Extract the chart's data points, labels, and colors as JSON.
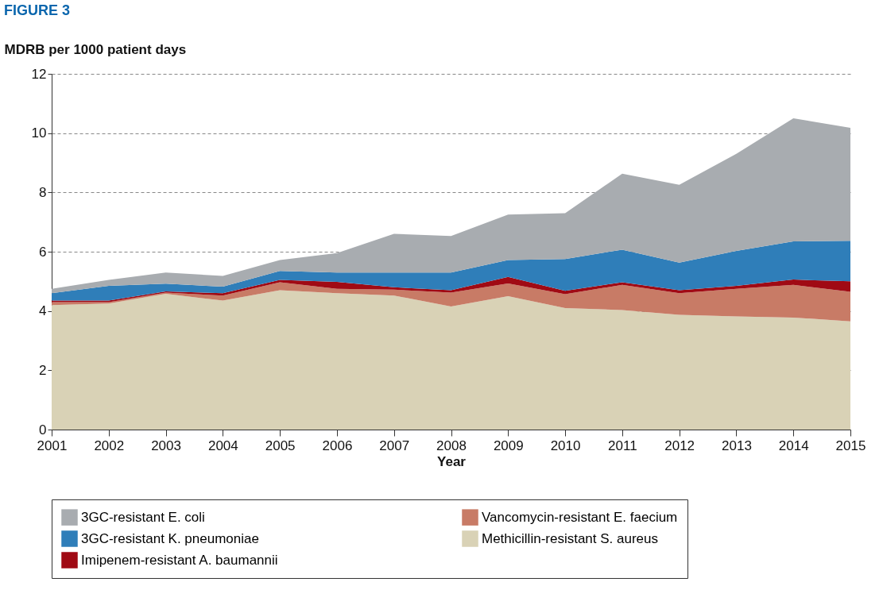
{
  "chart_data": {
    "type": "area",
    "title": "FIGURE 3",
    "ylabel": "MDRB per 1000 patient days",
    "xlabel": "Year",
    "stacked": true,
    "x": [
      2001,
      2002,
      2003,
      2004,
      2005,
      2006,
      2007,
      2008,
      2009,
      2010,
      2011,
      2012,
      2013,
      2014,
      2015
    ],
    "series": [
      {
        "name": "Methicillin-resistant S. aureus",
        "color": "#d9d2b6",
        "values": [
          4.2,
          4.25,
          4.58,
          4.35,
          4.7,
          4.6,
          4.52,
          4.15,
          4.5,
          4.1,
          4.03,
          3.87,
          3.82,
          3.78,
          3.65
        ]
      },
      {
        "name": "Vancomycin-resistant E. faecium",
        "color": "#c87b66",
        "values": [
          0.1,
          0.05,
          0.04,
          0.17,
          0.27,
          0.15,
          0.2,
          0.47,
          0.43,
          0.47,
          0.85,
          0.73,
          0.93,
          1.1,
          1.0
        ]
      },
      {
        "name": "Imipenem-resistant A. baumannii",
        "color": "#a00a14",
        "values": [
          0.05,
          0.05,
          0.04,
          0.08,
          0.08,
          0.23,
          0.08,
          0.08,
          0.22,
          0.11,
          0.09,
          0.1,
          0.1,
          0.18,
          0.35
        ]
      },
      {
        "name": "3GC-resistant K. pneumoniae",
        "color": "#2f7eb9",
        "values": [
          0.25,
          0.5,
          0.26,
          0.22,
          0.3,
          0.32,
          0.5,
          0.6,
          0.57,
          1.07,
          1.1,
          0.93,
          1.18,
          1.29,
          1.37
        ]
      },
      {
        "name": "3GC-resistant E. coli",
        "color": "#a8acb0",
        "values": [
          0.15,
          0.2,
          0.38,
          0.36,
          0.37,
          0.65,
          1.3,
          1.23,
          1.53,
          1.55,
          2.56,
          2.63,
          3.27,
          4.15,
          3.81
        ]
      }
    ],
    "xlim": [
      2001,
      2015
    ],
    "xticks": [
      2001,
      2002,
      2003,
      2004,
      2005,
      2006,
      2007,
      2008,
      2009,
      2010,
      2011,
      2012,
      2013,
      2014,
      2015
    ],
    "ylim": [
      0,
      12
    ],
    "yticks": [
      0,
      2,
      4,
      6,
      8,
      10,
      12
    ],
    "grid": "y",
    "legend": "bottom"
  }
}
